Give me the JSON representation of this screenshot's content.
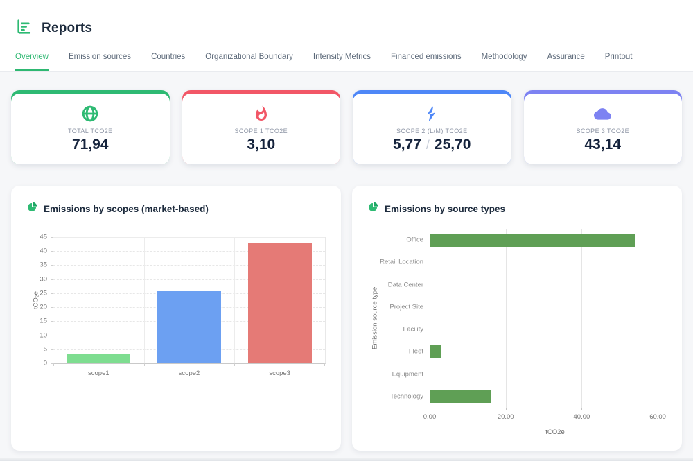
{
  "app": {
    "title": "Reports",
    "logo_icon": "bar-chart-icon",
    "accent_color": "#2eb872"
  },
  "tabs": [
    {
      "label": "Overview",
      "active": true
    },
    {
      "label": "Emission sources",
      "active": false
    },
    {
      "label": "Countries",
      "active": false
    },
    {
      "label": "Organizational Boundary",
      "active": false
    },
    {
      "label": "Intensity Metrics",
      "active": false
    },
    {
      "label": "Financed emissions",
      "active": false
    },
    {
      "label": "Methodology",
      "active": false
    },
    {
      "label": "Assurance",
      "active": false
    },
    {
      "label": "Printout",
      "active": false
    }
  ],
  "stat_cards": [
    {
      "id": "total",
      "icon": "globe-icon",
      "label": "TOTAL TCO2E",
      "value": "71,94",
      "color": "#2eba73"
    },
    {
      "id": "scope1",
      "icon": "flame-icon",
      "label": "SCOPE 1 TCO2E",
      "value": "3,10",
      "color": "#f25767"
    },
    {
      "id": "scope2",
      "icon": "bolt-icon",
      "label": "SCOPE 2 (L/M) TCO2E",
      "value": "5,77",
      "separator": "/",
      "value2": "25,70",
      "color": "#4e87f7"
    },
    {
      "id": "scope3",
      "icon": "cloud-icon",
      "label": "SCOPE 3 TCO2E",
      "value": "43,14",
      "color": "#7d82f2"
    }
  ],
  "chart_data": [
    {
      "type": "bar",
      "title": "Emissions by scopes (market-based)",
      "title_icon": "pie-chart-icon",
      "categories": [
        "scope1",
        "scope2",
        "scope3"
      ],
      "values": [
        3.1,
        25.7,
        43.1
      ],
      "bar_colors": [
        "#7edd90",
        "#6ca0f2",
        "#e57a76"
      ],
      "xlabel": "",
      "ylabel": "tCO₂e",
      "ylim": [
        0,
        45
      ],
      "ytick_step": 5,
      "yticks": [
        0,
        5,
        10,
        15,
        20,
        25,
        30,
        35,
        40,
        45
      ],
      "grid": true,
      "legend": false
    },
    {
      "type": "bar-horizontal",
      "title": "Emissions by source types",
      "title_icon": "pie-chart-icon",
      "categories": [
        "Office",
        "Retail Location",
        "Data Center",
        "Project Site",
        "Facility",
        "Fleet",
        "Equipment",
        "Technology"
      ],
      "values": [
        54.0,
        0,
        0,
        0,
        0,
        3.0,
        0,
        16.0
      ],
      "bar_color": "#5f9f55",
      "xlabel": "tCO2e",
      "ylabel": "Emission source type",
      "xlim": [
        0,
        66
      ],
      "xticks": [
        0,
        20,
        40,
        60
      ],
      "xtick_labels": [
        "0.00",
        "20.00",
        "40.00",
        "60.00"
      ],
      "grid": true,
      "legend": false
    }
  ]
}
